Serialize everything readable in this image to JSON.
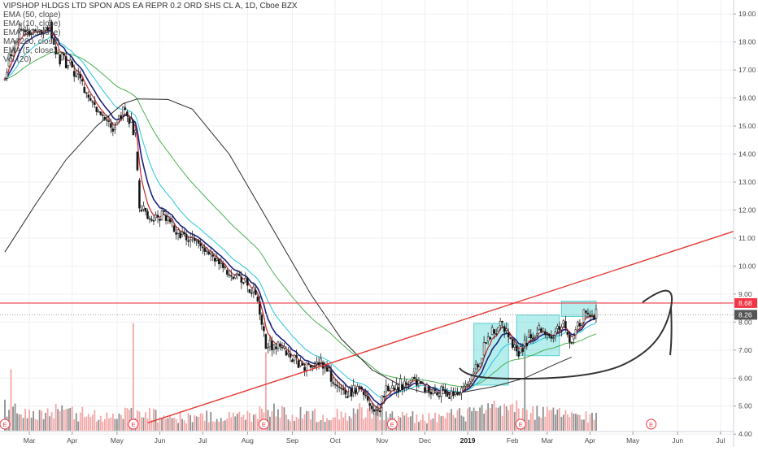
{
  "chart_data": {
    "type": "candlestick",
    "title": "VIPSHOP HLDGS LTD SPON ADS EA REPR 0.2 ORD SHS CL A, 1D, Cboe BZX",
    "indicators": [
      "EMA (50, close)",
      "EMA (10, close)",
      "EMA (20, close)",
      "MA (200, close)",
      "EMA (5, close)",
      "Vol (20)"
    ],
    "x_tick_labels": [
      "Mar",
      "Apr",
      "May",
      "Jun",
      "Jul",
      "Aug",
      "Sep",
      "Oct",
      "Nov",
      "Dec",
      "2019",
      "Feb",
      "Mar",
      "Apr",
      "May",
      "Jun",
      "Jul"
    ],
    "y_tick_labels": [
      "4.00",
      "5.00",
      "6.00",
      "7.00",
      "8.00",
      "9.00",
      "10.00",
      "11.00",
      "12.00",
      "13.00",
      "14.00",
      "15.00",
      "16.00",
      "17.00",
      "18.00",
      "19.00"
    ],
    "ylim": [
      3.6,
      19.5
    ],
    "price_labels": [
      {
        "text": "8.68",
        "value": 8.68,
        "color": "#f23645"
      },
      {
        "text": "8.26",
        "value": 8.26,
        "color": "#555555"
      }
    ],
    "horizontal_line": 8.68,
    "trendline": {
      "start": [
        70,
        4.4
      ],
      "end": [
        236,
        8.35
      ]
    },
    "earnings_markers": [
      {
        "label": "E",
        "day": 0
      },
      {
        "label": "E",
        "day": 63
      },
      {
        "label": "E",
        "day": 127
      },
      {
        "label": "E",
        "day": 190
      },
      {
        "label": "E",
        "day": 253
      },
      {
        "label": "E",
        "day": 317
      }
    ],
    "ma200_points": [
      [
        0,
        10.5
      ],
      [
        15,
        12.2
      ],
      [
        30,
        13.8
      ],
      [
        45,
        15.0
      ],
      [
        58,
        15.8
      ],
      [
        65,
        15.97
      ],
      [
        80,
        15.95
      ],
      [
        92,
        15.6
      ],
      [
        110,
        14.0
      ],
      [
        130,
        11.5
      ],
      [
        150,
        9.0
      ],
      [
        165,
        7.4
      ],
      [
        180,
        6.3
      ],
      [
        195,
        5.7
      ],
      [
        205,
        5.5
      ],
      [
        215,
        5.45
      ],
      [
        225,
        5.5
      ],
      [
        240,
        5.7
      ],
      [
        255,
        6.0
      ],
      [
        270,
        6.5
      ],
      [
        278,
        6.75
      ]
    ],
    "consolidation_boxes": [
      {
        "start_day": 230,
        "end_day": 247,
        "low": 5.75,
        "high": 7.95
      },
      {
        "start_day": 251,
        "end_day": 272,
        "low": 6.8,
        "high": 8.25
      },
      {
        "start_day": 273,
        "end_day": 290,
        "low": 8.2,
        "high": 8.75
      }
    ],
    "price_anchors": [
      [
        0,
        16.9
      ],
      [
        3,
        17.6
      ],
      [
        8,
        18.6
      ],
      [
        14,
        18.3
      ],
      [
        22,
        18.6
      ],
      [
        25,
        17.5
      ],
      [
        32,
        17.2
      ],
      [
        40,
        16.3
      ],
      [
        48,
        15.3
      ],
      [
        53,
        14.9
      ],
      [
        59,
        15.7
      ],
      [
        64,
        14.7
      ],
      [
        66,
        12.2
      ],
      [
        72,
        11.7
      ],
      [
        80,
        11.8
      ],
      [
        86,
        11.05
      ],
      [
        93,
        10.9
      ],
      [
        104,
        10.05
      ],
      [
        115,
        9.6
      ],
      [
        124,
        8.9
      ],
      [
        126,
        7.75
      ],
      [
        128,
        7.25
      ],
      [
        134,
        7.1
      ],
      [
        142,
        6.6
      ],
      [
        149,
        6.4
      ],
      [
        154,
        6.6
      ],
      [
        161,
        6.0
      ],
      [
        166,
        5.4
      ],
      [
        172,
        5.6
      ],
      [
        178,
        5.2
      ],
      [
        183,
        4.75
      ],
      [
        187,
        5.6
      ],
      [
        192,
        5.7
      ],
      [
        198,
        5.85
      ],
      [
        204,
        5.8
      ],
      [
        210,
        5.55
      ],
      [
        216,
        5.5
      ],
      [
        222,
        5.4
      ],
      [
        227,
        5.7
      ],
      [
        232,
        6.5
      ],
      [
        238,
        7.6
      ],
      [
        244,
        7.9
      ],
      [
        248,
        7.4
      ],
      [
        253,
        6.9
      ],
      [
        258,
        7.6
      ],
      [
        264,
        7.8
      ],
      [
        268,
        7.5
      ],
      [
        273,
        8.0
      ],
      [
        278,
        7.35
      ],
      [
        284,
        8.3
      ],
      [
        290,
        8.26
      ]
    ],
    "volume_anchors": [
      [
        0,
        1.3
      ],
      [
        10,
        1.0
      ],
      [
        25,
        1.15
      ],
      [
        40,
        1.0
      ],
      [
        55,
        0.85
      ],
      [
        65,
        1.3
      ],
      [
        80,
        0.8
      ],
      [
        100,
        0.85
      ],
      [
        120,
        0.9
      ],
      [
        128,
        1.5
      ],
      [
        140,
        1.0
      ],
      [
        160,
        0.95
      ],
      [
        178,
        1.25
      ],
      [
        190,
        0.9
      ],
      [
        210,
        0.8
      ],
      [
        230,
        1.1
      ],
      [
        246,
        1.4
      ],
      [
        254,
        1.2
      ],
      [
        268,
        1.05
      ],
      [
        290,
        0.85
      ]
    ],
    "volume_spikes": [
      {
        "day": 3,
        "value": 3.6
      },
      {
        "day": 63,
        "value": 6.3
      },
      {
        "day": 128,
        "value": 4.6
      },
      {
        "day": 255,
        "value": 5.7
      }
    ],
    "n_days": 291
  }
}
